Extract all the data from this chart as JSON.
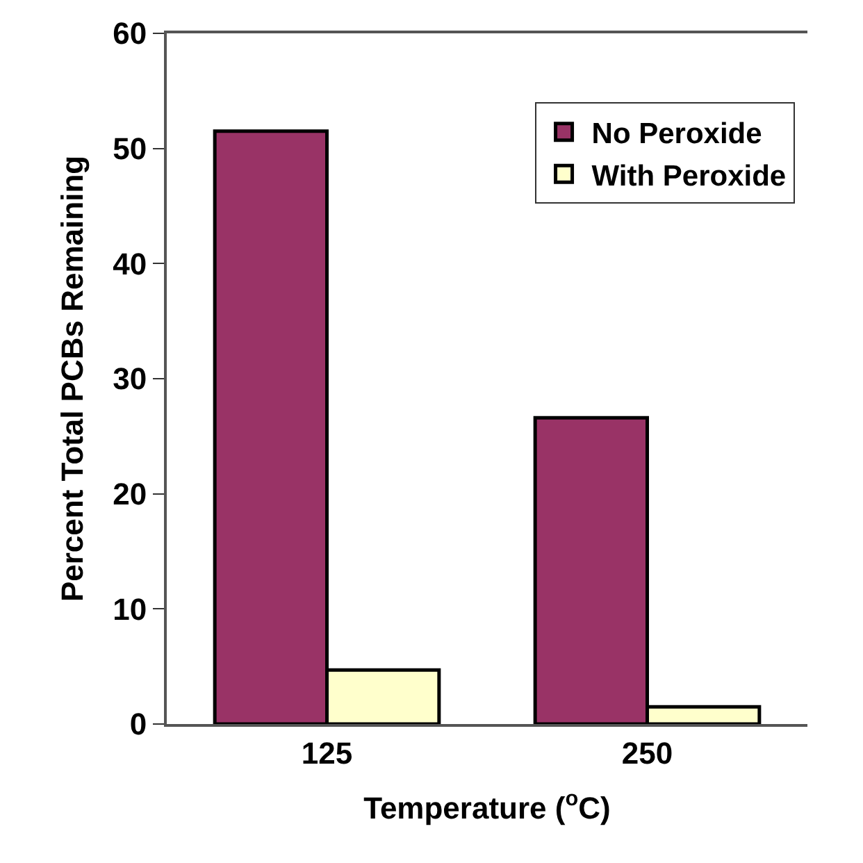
{
  "chart_data": {
    "type": "bar",
    "categories": [
      "125",
      "250"
    ],
    "series": [
      {
        "name": "No Peroxide",
        "color": "#993366",
        "values": [
          51.5,
          26.6
        ]
      },
      {
        "name": "With Peroxide",
        "color": "#ffffcc",
        "values": [
          4.7,
          1.5
        ]
      }
    ],
    "xlabel": "Temperature ($^{o}$C)",
    "ylabel": "Percent Total PCBs Remaining",
    "ylim": [
      0,
      60
    ],
    "yticks": [
      0,
      10,
      20,
      30,
      40,
      50,
      60
    ],
    "legend": "top right"
  }
}
